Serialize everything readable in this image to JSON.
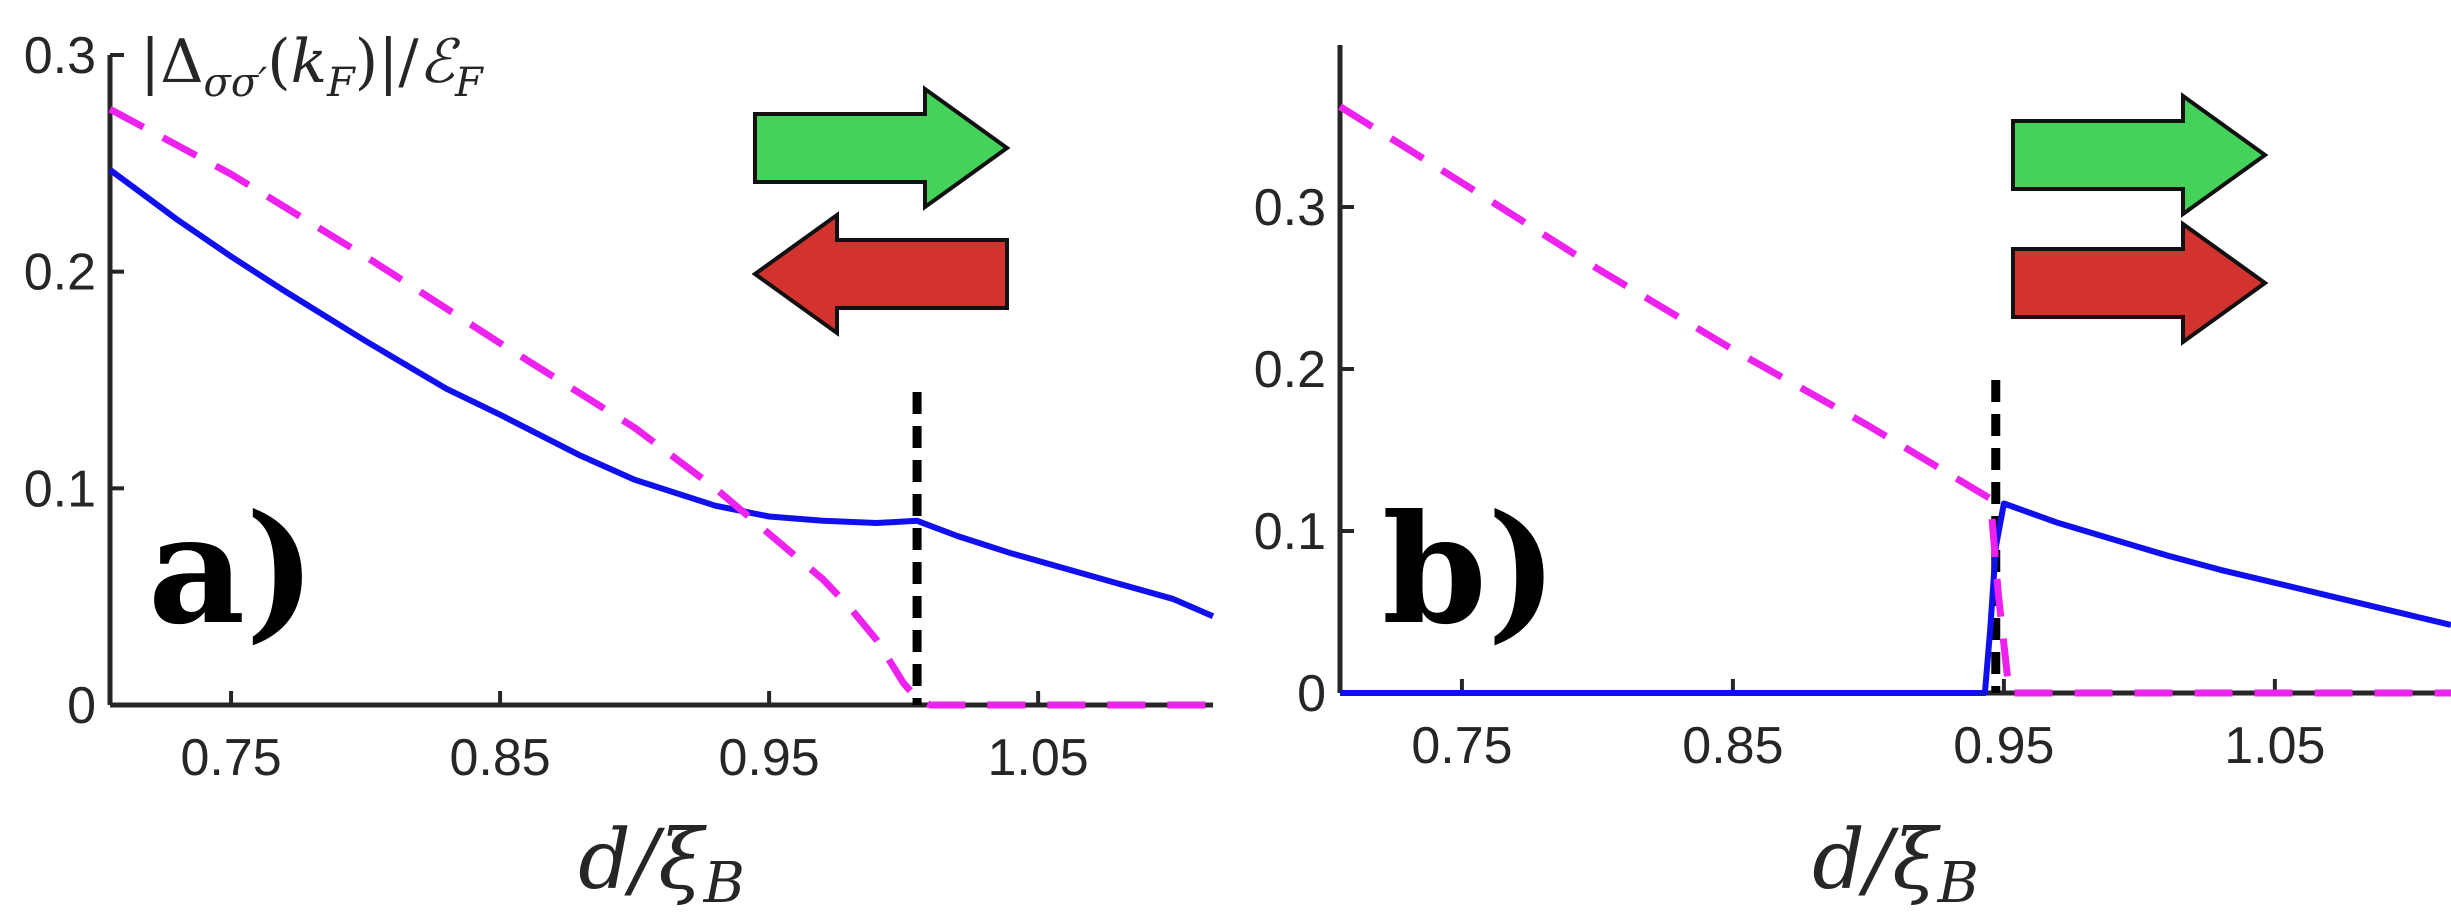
{
  "chart_data": [
    {
      "panel_label": "a)",
      "type": "line",
      "ylabel": "|Δ_σσ′(k_F)|/ℰ_F",
      "xlabel": "d/ξ_B",
      "xlim": [
        0.705,
        1.115
      ],
      "ylim": [
        0,
        0.3
      ],
      "xticks": [
        0.75,
        0.85,
        0.95,
        1.05
      ],
      "xtick_labels": [
        "0.75",
        "0.85",
        "0.95",
        "1.05"
      ],
      "yticks": [
        0,
        0.1,
        0.2,
        0.3
      ],
      "ytick_labels": [
        "0",
        "0.1",
        "0.2",
        "0.3"
      ],
      "vline_x": 1.005,
      "series": [
        {
          "color": "#1010ee",
          "dash": "solid",
          "x": [
            0.705,
            0.73,
            0.75,
            0.77,
            0.8,
            0.83,
            0.85,
            0.88,
            0.9,
            0.93,
            0.95,
            0.97,
            0.99,
            1.005,
            1.02,
            1.04,
            1.06,
            1.08,
            1.1,
            1.115
          ],
          "y": [
            0.247,
            0.224,
            0.207,
            0.191,
            0.168,
            0.146,
            0.134,
            0.115,
            0.104,
            0.092,
            0.087,
            0.085,
            0.084,
            0.085,
            0.078,
            0.07,
            0.063,
            0.056,
            0.049,
            0.041
          ]
        },
        {
          "color": "#ee22ee",
          "dash": "dashed",
          "x": [
            0.705,
            0.75,
            0.8,
            0.85,
            0.9,
            0.93,
            0.95,
            0.97,
            0.98,
            0.99,
            0.995,
            1.0,
            1.005,
            1.01,
            1.115
          ],
          "y": [
            0.275,
            0.245,
            0.207,
            0.167,
            0.128,
            0.1,
            0.079,
            0.058,
            0.045,
            0.03,
            0.02,
            0.01,
            0.003,
            0.0,
            0.0
          ]
        }
      ]
    },
    {
      "panel_label": "b)",
      "type": "line",
      "xlabel": "d/ξ_B",
      "xlim": [
        0.705,
        1.115
      ],
      "ylim": [
        0,
        0.4
      ],
      "xticks": [
        0.75,
        0.85,
        0.95,
        1.05
      ],
      "xtick_labels": [
        "0.75",
        "0.85",
        "0.95",
        "1.05"
      ],
      "yticks": [
        0,
        0.1,
        0.2,
        0.3
      ],
      "ytick_labels": [
        "0",
        "0.1",
        "0.2",
        "0.3"
      ],
      "vline_x": 0.947,
      "series": [
        {
          "color": "#1010ee",
          "dash": "solid",
          "x": [
            0.705,
            0.943,
            0.945,
            0.947,
            0.95,
            0.97,
            0.99,
            1.01,
            1.03,
            1.05,
            1.07,
            1.09,
            1.115
          ],
          "y": [
            0.0,
            0.0,
            0.04,
            0.09,
            0.117,
            0.105,
            0.095,
            0.085,
            0.076,
            0.068,
            0.06,
            0.052,
            0.042
          ]
        },
        {
          "color": "#ee22ee",
          "dash": "dashed",
          "x": [
            0.705,
            0.75,
            0.8,
            0.85,
            0.9,
            0.93,
            0.945,
            0.948,
            0.952,
            1.115
          ],
          "y": [
            0.362,
            0.315,
            0.262,
            0.212,
            0.165,
            0.135,
            0.12,
            0.06,
            0.0,
            0.0
          ]
        }
      ]
    }
  ],
  "arrows": {
    "a": {
      "green": "right",
      "red": "left"
    },
    "b": {
      "green": "right",
      "red": "right"
    }
  },
  "colors": {
    "green": "#44d25a",
    "red": "#d2332e",
    "outline": "#111111"
  }
}
